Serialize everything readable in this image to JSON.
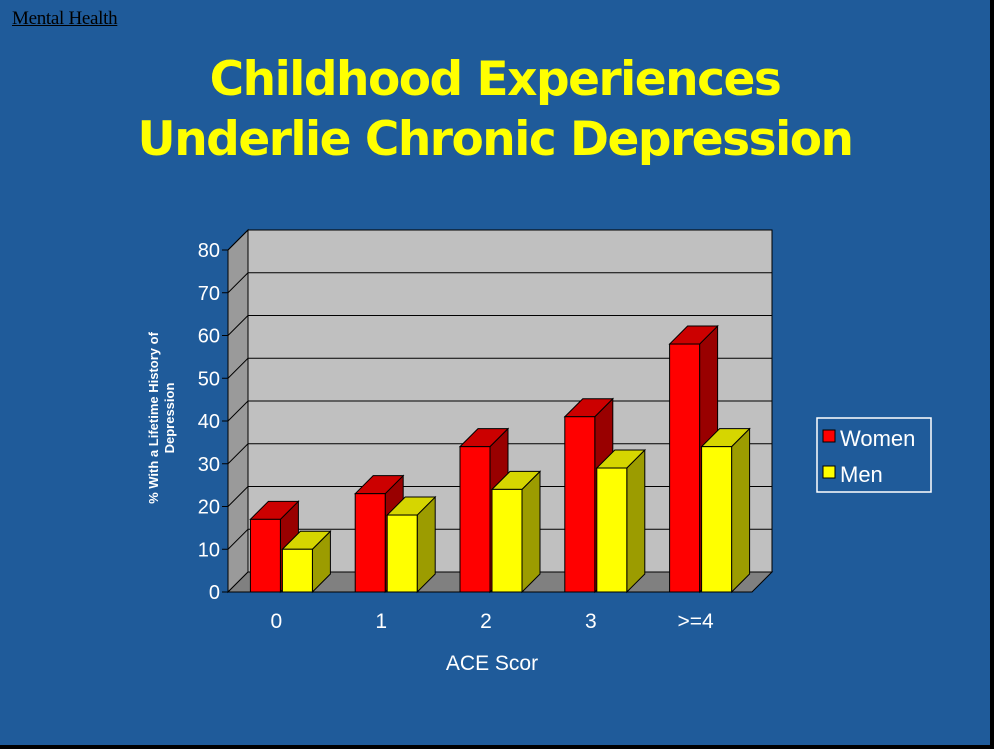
{
  "header": {
    "section": "Mental Health"
  },
  "title": {
    "line1": "Childhood Experiences",
    "line2": "Underlie Chronic Depression"
  },
  "colors": {
    "background": "#1f5b9a",
    "title": "#ffff00",
    "women": "#ff0000",
    "men": "#ffff00"
  },
  "chart_data": {
    "type": "bar",
    "style": "3d-clustered",
    "categories": [
      "0",
      "1",
      "2",
      "3",
      ">=4"
    ],
    "series": [
      {
        "name": "Women",
        "values": [
          17,
          23,
          34,
          41,
          58
        ]
      },
      {
        "name": "Men",
        "values": [
          10,
          18,
          24,
          29,
          34
        ]
      }
    ],
    "yticks": [
      "0",
      "10",
      "20",
      "30",
      "40",
      "50",
      "60",
      "70",
      "80"
    ],
    "ylim": [
      0,
      80
    ],
    "xlabel": "ACE Scor",
    "ylabel_line1": "% With a Lifetime History of",
    "ylabel_line2": "Depression",
    "grid": true,
    "legend": "right"
  }
}
